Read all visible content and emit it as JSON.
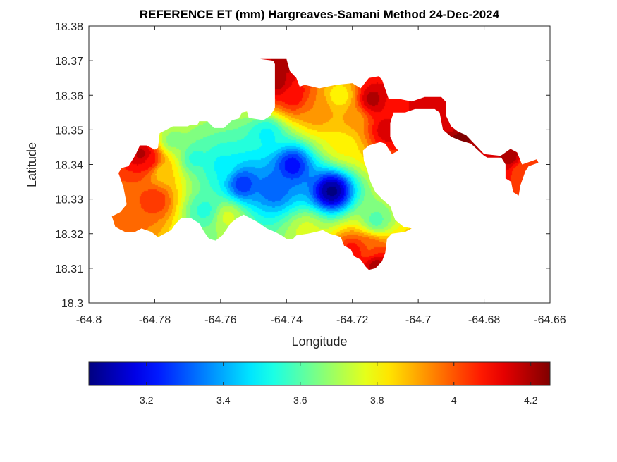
{
  "chart_data": {
    "type": "heatmap",
    "title": "REFERENCE ET (mm) Hargreaves-Samani Method  24-Dec-2024",
    "xlabel": "Longitude",
    "ylabel": "Latitude",
    "xlim": [
      -64.8,
      -64.66
    ],
    "ylim": [
      18.3,
      18.38
    ],
    "xticks": [
      -64.8,
      -64.78,
      -64.76,
      -64.74,
      -64.72,
      -64.7,
      -64.68,
      -64.66
    ],
    "yticks": [
      18.3,
      18.31,
      18.32,
      18.33,
      18.34,
      18.35,
      18.36,
      18.37,
      18.38
    ],
    "xtick_labels": [
      "-64.8",
      "-64.78",
      "-64.76",
      "-64.74",
      "-64.72",
      "-64.7",
      "-64.68",
      "-64.66"
    ],
    "ytick_labels": [
      "18.3",
      "18.31",
      "18.32",
      "18.33",
      "18.34",
      "18.35",
      "18.36",
      "18.37",
      "18.38"
    ],
    "colormap": "jet",
    "color_range": [
      3.05,
      4.25
    ],
    "colorbar_ticks": [
      3.2,
      3.4,
      3.6,
      3.8,
      4.0,
      4.2
    ],
    "colorbar_tick_labels": [
      "3.2",
      "3.4",
      "3.6",
      "3.8",
      "4",
      "4.2"
    ],
    "colorbar_location": "bottom",
    "grid": false,
    "field_sources": [
      {
        "lon": -64.7265,
        "lat": 18.3325,
        "value": 3.05
      },
      {
        "lon": -64.7385,
        "lat": 18.34,
        "value": 3.2
      },
      {
        "lon": -64.7535,
        "lat": 18.3345,
        "value": 3.25
      },
      {
        "lon": -64.744,
        "lat": 18.333,
        "value": 3.3
      },
      {
        "lon": -64.76,
        "lat": 18.34,
        "value": 3.5
      },
      {
        "lon": -64.768,
        "lat": 18.342,
        "value": 3.55
      },
      {
        "lon": -64.765,
        "lat": 18.327,
        "value": 3.55
      },
      {
        "lon": -64.775,
        "lat": 18.347,
        "value": 3.65
      },
      {
        "lon": -64.758,
        "lat": 18.325,
        "value": 3.75
      },
      {
        "lon": -64.746,
        "lat": 18.349,
        "value": 3.5
      },
      {
        "lon": -64.723,
        "lat": 18.346,
        "value": 3.8
      },
      {
        "lon": -64.713,
        "lat": 18.324,
        "value": 3.6
      },
      {
        "lon": -64.734,
        "lat": 18.321,
        "value": 3.75
      },
      {
        "lon": -64.778,
        "lat": 18.338,
        "value": 3.85
      },
      {
        "lon": -64.782,
        "lat": 18.341,
        "value": 4.1
      },
      {
        "lon": -64.784,
        "lat": 18.343,
        "value": 4.2
      },
      {
        "lon": -64.78,
        "lat": 18.33,
        "value": 4.05
      },
      {
        "lon": -64.79,
        "lat": 18.324,
        "value": 4.0
      },
      {
        "lon": -64.72,
        "lat": 18.353,
        "value": 3.9
      },
      {
        "lon": -64.731,
        "lat": 18.356,
        "value": 3.95
      },
      {
        "lon": -64.724,
        "lat": 18.36,
        "value": 3.8
      },
      {
        "lon": -64.738,
        "lat": 18.36,
        "value": 4.1
      },
      {
        "lon": -64.743,
        "lat": 18.364,
        "value": 4.2
      },
      {
        "lon": -64.741,
        "lat": 18.37,
        "value": 4.2
      },
      {
        "lon": -64.714,
        "lat": 18.359,
        "value": 4.2
      },
      {
        "lon": -64.71,
        "lat": 18.35,
        "value": 4.15
      },
      {
        "lon": -64.708,
        "lat": 18.3575,
        "value": 4.1
      },
      {
        "lon": -64.698,
        "lat": 18.3575,
        "value": 4.15
      },
      {
        "lon": -64.69,
        "lat": 18.351,
        "value": 4.15
      },
      {
        "lon": -64.688,
        "lat": 18.348,
        "value": 4.25
      },
      {
        "lon": -64.672,
        "lat": 18.342,
        "value": 4.2
      },
      {
        "lon": -64.669,
        "lat": 18.339,
        "value": 4.0
      },
      {
        "lon": -64.715,
        "lat": 18.316,
        "value": 4.0
      },
      {
        "lon": -64.713,
        "lat": 18.311,
        "value": 4.2
      },
      {
        "lon": -64.72,
        "lat": 18.315,
        "value": 4.1
      }
    ],
    "land_mask": [
      [
        [
          -64.792,
          18.322
        ],
        [
          -64.793,
          18.325
        ],
        [
          -64.7905,
          18.3262
        ],
        [
          -64.7885,
          18.3285
        ],
        [
          -64.7895,
          18.3335
        ],
        [
          -64.791,
          18.3375
        ],
        [
          -64.79,
          18.339
        ],
        [
          -64.788,
          18.3395
        ],
        [
          -64.786,
          18.3425
        ],
        [
          -64.7845,
          18.3455
        ],
        [
          -64.7825,
          18.3455
        ],
        [
          -64.78,
          18.3443
        ],
        [
          -64.779,
          18.3448
        ],
        [
          -64.7785,
          18.349
        ],
        [
          -64.7745,
          18.351
        ],
        [
          -64.77,
          18.351
        ],
        [
          -64.769,
          18.3515
        ],
        [
          -64.767,
          18.3515
        ],
        [
          -64.7665,
          18.3525
        ],
        [
          -64.764,
          18.3525
        ],
        [
          -64.762,
          18.3505
        ],
        [
          -64.759,
          18.3505
        ],
        [
          -64.7565,
          18.3528
        ],
        [
          -64.7545,
          18.3533
        ],
        [
          -64.7535,
          18.355
        ],
        [
          -64.752,
          18.3553
        ],
        [
          -64.7515,
          18.3535
        ],
        [
          -64.747,
          18.3528
        ],
        [
          -64.745,
          18.354
        ],
        [
          -64.7435,
          18.3563
        ],
        [
          -64.7435,
          18.369
        ],
        [
          -64.744,
          18.37
        ],
        [
          -64.748,
          18.3705
        ],
        [
          -64.74,
          18.3705
        ],
        [
          -64.739,
          18.367
        ],
        [
          -64.737,
          18.365
        ],
        [
          -64.736,
          18.3625
        ],
        [
          -64.7345,
          18.363
        ],
        [
          -64.73,
          18.362
        ],
        [
          -64.725,
          18.363
        ],
        [
          -64.72,
          18.3635
        ],
        [
          -64.7175,
          18.362
        ],
        [
          -64.715,
          18.365
        ],
        [
          -64.712,
          18.3655
        ],
        [
          -64.711,
          18.3645
        ],
        [
          -64.709,
          18.359
        ],
        [
          -64.706,
          18.359
        ],
        [
          -64.702,
          18.3582
        ],
        [
          -64.698,
          18.3595
        ],
        [
          -64.693,
          18.3595
        ],
        [
          -64.6915,
          18.358
        ],
        [
          -64.6915,
          18.354
        ],
        [
          -64.69,
          18.351
        ],
        [
          -64.688,
          18.3495
        ],
        [
          -64.6855,
          18.3485
        ],
        [
          -64.68,
          18.343
        ],
        [
          -64.675,
          18.3425
        ],
        [
          -64.672,
          18.3445
        ],
        [
          -64.67,
          18.3435
        ],
        [
          -64.6685,
          18.34
        ],
        [
          -64.664,
          18.3415
        ],
        [
          -64.6635,
          18.3405
        ],
        [
          -64.6665,
          18.3395
        ],
        [
          -64.6675,
          18.338
        ],
        [
          -64.669,
          18.334
        ],
        [
          -64.6695,
          18.331
        ],
        [
          -64.6712,
          18.332
        ],
        [
          -64.6718,
          18.335
        ],
        [
          -64.6735,
          18.336
        ],
        [
          -64.6735,
          18.34
        ],
        [
          -64.6748,
          18.342
        ],
        [
          -64.679,
          18.342
        ],
        [
          -64.68,
          18.3425
        ],
        [
          -64.684,
          18.346
        ],
        [
          -64.6875,
          18.347
        ],
        [
          -64.69,
          18.348
        ],
        [
          -64.6925,
          18.35
        ],
        [
          -64.6935,
          18.355
        ],
        [
          -64.695,
          18.356
        ],
        [
          -64.701,
          18.356
        ],
        [
          -64.704,
          18.355
        ],
        [
          -64.7075,
          18.355
        ],
        [
          -64.7085,
          18.352
        ],
        [
          -64.7085,
          18.348
        ],
        [
          -64.707,
          18.345
        ],
        [
          -64.706,
          18.344
        ],
        [
          -64.708,
          18.343
        ],
        [
          -64.709,
          18.3445
        ],
        [
          -64.71,
          18.346
        ],
        [
          -64.7115,
          18.3465
        ],
        [
          -64.715,
          18.3455
        ],
        [
          -64.7168,
          18.344
        ],
        [
          -64.7165,
          18.341
        ],
        [
          -64.7155,
          18.3385
        ],
        [
          -64.7145,
          18.335
        ],
        [
          -64.713,
          18.332
        ],
        [
          -64.711,
          18.33
        ],
        [
          -64.7085,
          18.328
        ],
        [
          -64.707,
          18.324
        ],
        [
          -64.7045,
          18.322
        ],
        [
          -64.702,
          18.3215
        ],
        [
          -64.704,
          18.3205
        ],
        [
          -64.708,
          18.32
        ],
        [
          -64.7095,
          18.3185
        ],
        [
          -64.71,
          18.3145
        ],
        [
          -64.711,
          18.312
        ],
        [
          -64.713,
          18.31
        ],
        [
          -64.715,
          18.3095
        ],
        [
          -64.716,
          18.3105
        ],
        [
          -64.7175,
          18.3125
        ],
        [
          -64.7195,
          18.3135
        ],
        [
          -64.7205,
          18.3155
        ],
        [
          -64.7225,
          18.3165
        ],
        [
          -64.7235,
          18.319
        ],
        [
          -64.725,
          18.3195
        ],
        [
          -64.727,
          18.32
        ],
        [
          -64.729,
          18.321
        ],
        [
          -64.731,
          18.3205
        ],
        [
          -64.7335,
          18.32
        ],
        [
          -64.737,
          18.3195
        ],
        [
          -64.738,
          18.3185
        ],
        [
          -64.74,
          18.3185
        ],
        [
          -64.7415,
          18.3195
        ],
        [
          -64.7435,
          18.3205
        ],
        [
          -64.746,
          18.3215
        ],
        [
          -64.749,
          18.3235
        ],
        [
          -64.753,
          18.3255
        ],
        [
          -64.755,
          18.3245
        ],
        [
          -64.757,
          18.323
        ],
        [
          -64.758,
          18.3215
        ],
        [
          -64.7595,
          18.3195
        ],
        [
          -64.7615,
          18.318
        ],
        [
          -64.7635,
          18.3185
        ],
        [
          -64.765,
          18.3205
        ],
        [
          -64.7665,
          18.323
        ],
        [
          -64.769,
          18.3245
        ],
        [
          -64.772,
          18.3245
        ],
        [
          -64.774,
          18.3225
        ],
        [
          -64.775,
          18.321
        ],
        [
          -64.777,
          18.32
        ],
        [
          -64.779,
          18.319
        ],
        [
          -64.781,
          18.3205
        ],
        [
          -64.784,
          18.3215
        ],
        [
          -64.786,
          18.3205
        ],
        [
          -64.789,
          18.3205
        ],
        [
          -64.7905,
          18.3212
        ]
      ],
      [
        [
          -64.716,
          18.315
        ],
        [
          -64.7175,
          18.315
        ],
        [
          -64.718,
          18.3165
        ],
        [
          -64.7165,
          18.317
        ],
        [
          -64.7155,
          18.316
        ]
      ]
    ]
  }
}
